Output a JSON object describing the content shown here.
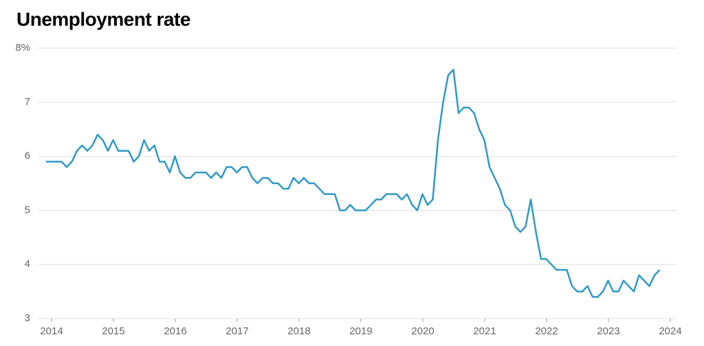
{
  "chart_data": {
    "type": "line",
    "title": "Unemployment rate",
    "color": "#2e98c8",
    "grid": true,
    "xlim": [
      2014,
      2024
    ],
    "xticks": [
      2014,
      2015,
      2016,
      2017,
      2018,
      2019,
      2020,
      2021,
      2022,
      2023,
      2024
    ],
    "ylim": [
      3,
      8
    ],
    "yticks": [
      3,
      4,
      5,
      6,
      7,
      {
        "value": 8,
        "label": "8%"
      }
    ],
    "values": [
      5.9,
      5.9,
      5.9,
      5.9,
      5.8,
      5.9,
      6.1,
      6.2,
      6.1,
      6.2,
      6.4,
      6.3,
      6.1,
      6.3,
      6.1,
      6.1,
      6.1,
      5.9,
      6.0,
      6.3,
      6.1,
      6.2,
      5.9,
      5.9,
      5.7,
      6.0,
      5.7,
      5.6,
      5.6,
      5.7,
      5.7,
      5.7,
      5.6,
      5.7,
      5.6,
      5.8,
      5.8,
      5.7,
      5.8,
      5.8,
      5.6,
      5.5,
      5.6,
      5.6,
      5.5,
      5.5,
      5.4,
      5.4,
      5.6,
      5.5,
      5.6,
      5.5,
      5.5,
      5.4,
      5.3,
      5.3,
      5.3,
      5.0,
      5.0,
      5.1,
      5.0,
      5.0,
      5.0,
      5.1,
      5.2,
      5.2,
      5.3,
      5.3,
      5.3,
      5.2,
      5.3,
      5.1,
      5.0,
      5.3,
      5.1,
      5.2,
      6.3,
      7.0,
      7.5,
      7.6,
      6.8,
      6.9,
      6.9,
      6.8,
      6.5,
      6.3,
      5.8,
      5.6,
      5.4,
      5.1,
      5.0,
      4.7,
      4.6,
      4.7,
      5.2,
      4.6,
      4.1,
      4.1,
      4.0,
      3.9,
      3.9,
      3.9,
      3.6,
      3.5,
      3.5,
      3.6,
      3.4,
      3.4,
      3.5,
      3.7,
      3.5,
      3.5,
      3.7,
      3.6,
      3.5,
      3.8,
      3.7,
      3.6,
      3.8,
      3.9
    ]
  }
}
